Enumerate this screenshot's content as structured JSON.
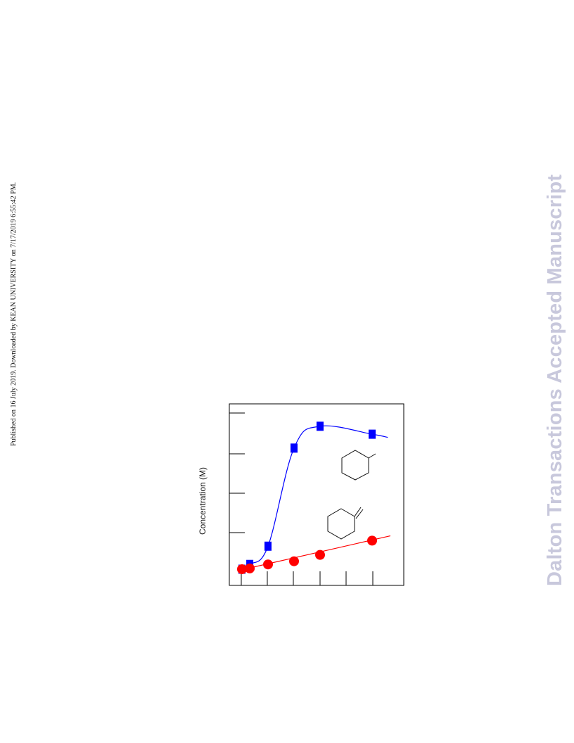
{
  "header": {
    "published_note": "Published on 16 July 2019. Downloaded by KEAN UNIVERSITY on 7/17/2019 6:55:42 PM."
  },
  "watermark": {
    "text": "Dalton Transactions Accepted Manuscript"
  },
  "chart_data": {
    "type": "line",
    "ylabel": "Concentration (M)",
    "ylim": [
      0,
      4.2
    ],
    "xlim": [
      -0.2,
      6.2
    ],
    "grid": false,
    "series": [
      {
        "marker": "square",
        "color": "#0000ff",
        "x": [
          0,
          0.3,
          1,
          2,
          3,
          5
        ],
        "y": [
          0,
          0.12,
          0.58,
          3.05,
          3.6,
          3.4
        ]
      },
      {
        "marker": "circle",
        "color": "#ff0000",
        "x": [
          0,
          0.3,
          1,
          2,
          3,
          5
        ],
        "y": [
          0,
          0.02,
          0.12,
          0.2,
          0.36,
          0.72
        ]
      }
    ],
    "series_colors": {
      "square": "#0000ff",
      "circle": "#ff0000"
    },
    "annotations": [
      "methylcyclohexene-structure-icon",
      "methylenecyclohexane-structure-icon"
    ]
  }
}
